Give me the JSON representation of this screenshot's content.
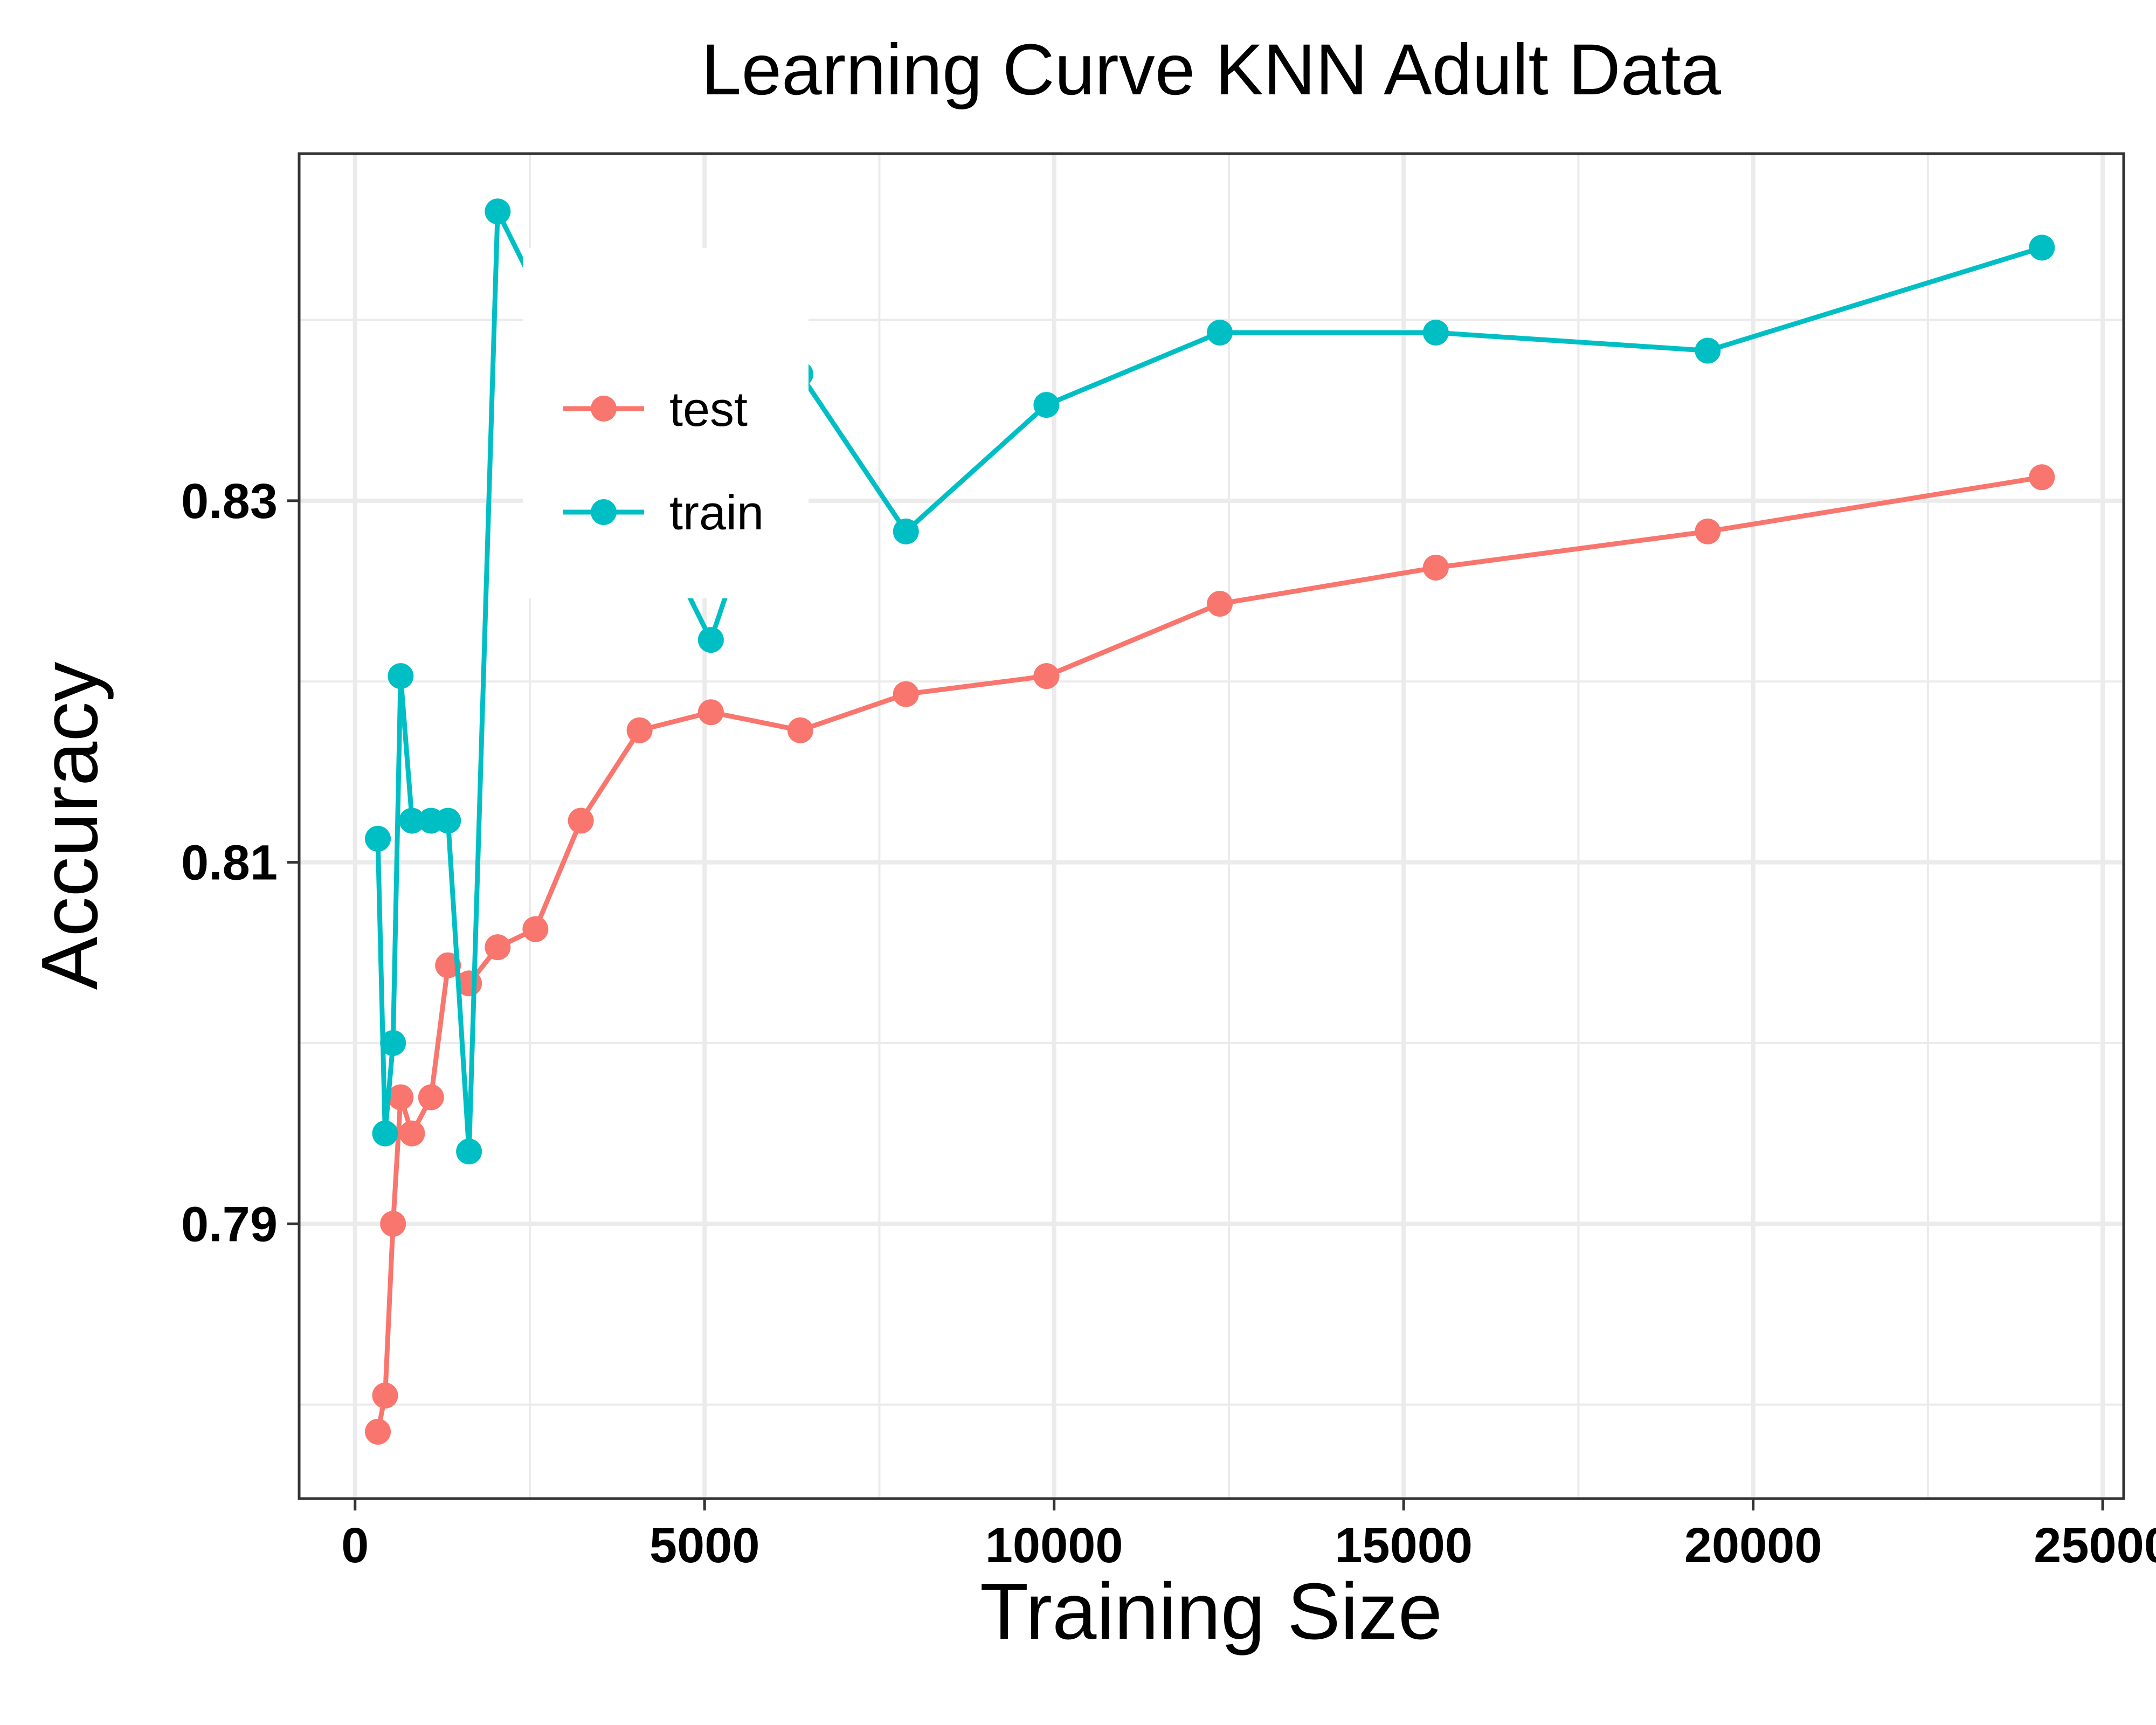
{
  "chart_data": {
    "type": "line",
    "title": "Learning Curve KNN Adult Data",
    "xlabel": "Training Size",
    "ylabel": "Accuracy",
    "xlim": [
      -800,
      25300
    ],
    "ylim": [
      0.7748,
      0.8492
    ],
    "x_ticks": [
      0,
      5000,
      10000,
      15000,
      20000,
      25000
    ],
    "x_tick_labels": [
      "0",
      "5000",
      "10000",
      "15000",
      "20000",
      "25000"
    ],
    "y_ticks": [
      0.79,
      0.81,
      0.83
    ],
    "y_tick_labels": [
      "0.79",
      "0.81",
      "0.83"
    ],
    "grid": true,
    "legend_position": "top-left",
    "series": [
      {
        "name": "test",
        "color": "#F8766D",
        "points": [
          [
            326,
            0.7785
          ],
          [
            430,
            0.7805
          ],
          [
            543,
            0.79
          ],
          [
            652,
            0.797
          ],
          [
            815,
            0.795
          ],
          [
            1087,
            0.797
          ],
          [
            1330,
            0.8043
          ],
          [
            1630,
            0.8033
          ],
          [
            2040,
            0.8053
          ],
          [
            2580,
            0.8063
          ],
          [
            3230,
            0.8123
          ],
          [
            4070,
            0.8173
          ],
          [
            5090,
            0.8183
          ],
          [
            6370,
            0.8173
          ],
          [
            7880,
            0.8193
          ],
          [
            9890,
            0.8203
          ],
          [
            12370,
            0.8243
          ],
          [
            15460,
            0.8263
          ],
          [
            19350,
            0.8283
          ],
          [
            24130,
            0.8313
          ]
        ]
      },
      {
        "name": "train",
        "color": "#00BFC4",
        "points": [
          [
            326,
            0.8113
          ],
          [
            430,
            0.795
          ],
          [
            543,
            0.8
          ],
          [
            652,
            0.8203
          ],
          [
            815,
            0.8123
          ],
          [
            1087,
            0.8123
          ],
          [
            1330,
            0.8123
          ],
          [
            1630,
            0.794
          ],
          [
            2040,
            0.846
          ],
          [
            5090,
            0.8223
          ],
          [
            6370,
            0.837
          ],
          [
            7880,
            0.8283
          ],
          [
            9890,
            0.8353
          ],
          [
            12370,
            0.8393
          ],
          [
            15460,
            0.8393
          ],
          [
            19350,
            0.8383
          ],
          [
            24130,
            0.844
          ]
        ]
      }
    ]
  }
}
